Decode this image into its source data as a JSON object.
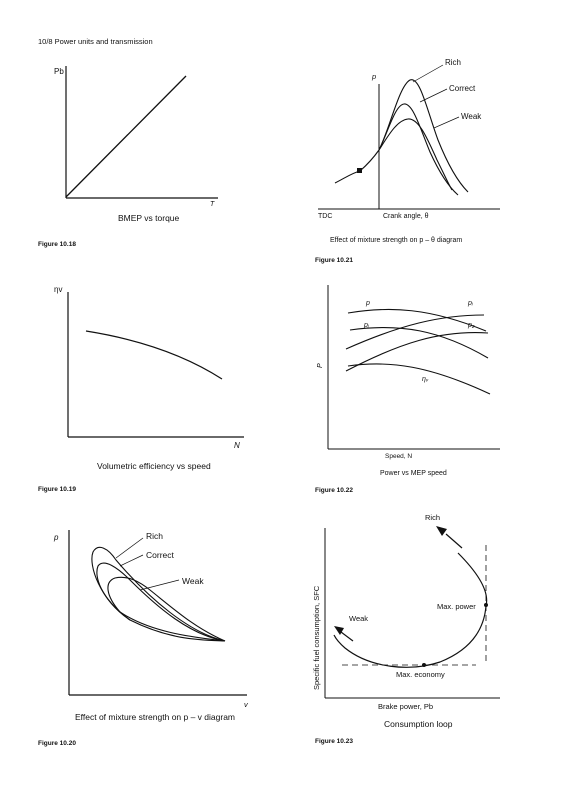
{
  "header": {
    "text": "10/8   Power units and transmission"
  },
  "fig18": {
    "ylabel": "Pb",
    "xlabel": "T",
    "caption": "BMEP vs torque",
    "figure_label": "Figure 10.18"
  },
  "fig19": {
    "ylabel": "ηv",
    "xlabel": "N",
    "caption": "Volumetric efficiency vs speed",
    "figure_label": "Figure 10.19"
  },
  "fig20": {
    "ylabel": "p",
    "xlabel": "v",
    "curve_labels": [
      "Rich",
      "Correct",
      "Weak"
    ],
    "caption": "Effect of mixture strength on p – v diagram",
    "figure_label": "Figure 10.20"
  },
  "fig21": {
    "ylabel": "p",
    "curve_labels": [
      "Rich",
      "Correct",
      "Weak"
    ],
    "tdc": "TDC",
    "xlabel": "Crank angle, θ",
    "caption": "Effect of mixture strength on p – θ diagram",
    "figure_label": "Figure 10.21"
  },
  "fig22": {
    "ylabel": "P",
    "curve_labels": [
      "p",
      "pᵢ",
      "pᵢ",
      "p₂",
      "ηᵥ"
    ],
    "xlabel": "Speed, N",
    "caption": "Power vs MEP speed",
    "figure_label": "Figure 10.22"
  },
  "fig23": {
    "ylabel": "Specific fuel consumption, SFC",
    "xlabel": "Brake power, Pb",
    "labels": [
      "Rich",
      "Weak",
      "Max. power",
      "Max. economy"
    ],
    "caption": "Consumption loop",
    "figure_label": "Figure 10.23"
  },
  "colors": {
    "ink": "#111111",
    "paper": "#ffffff"
  }
}
